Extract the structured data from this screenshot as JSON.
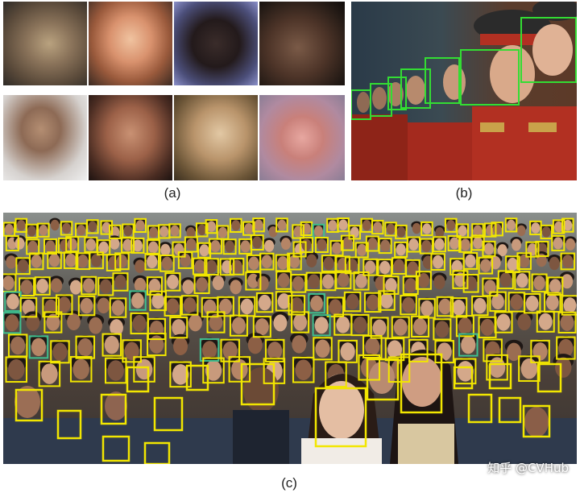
{
  "captions": {
    "a": "(a)",
    "b": "(b)",
    "c": "(c)"
  },
  "watermark": "知乎 @CVHub",
  "colors": {
    "box_green": "#33dd33",
    "box_yellow": "#f2e600",
    "box_teal": "#3fbf8f"
  }
}
